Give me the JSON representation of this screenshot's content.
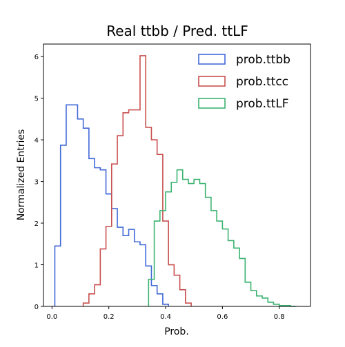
{
  "chart_data": {
    "type": "histogram",
    "title": "Real ttbb / Pred. ttLF",
    "xlabel": "Prob.",
    "ylabel": "Normalized Entries",
    "xlim": [
      -0.03,
      0.91
    ],
    "ylim": [
      0,
      6.3
    ],
    "xticks": [
      0.0,
      0.2,
      0.4,
      0.6,
      0.8
    ],
    "xtick_labels": [
      "0.0",
      "0.2",
      "0.4",
      "0.6",
      "0.8"
    ],
    "yticks": [
      0,
      1,
      2,
      3,
      4,
      5,
      6
    ],
    "ytick_labels": [
      "0",
      "1",
      "2",
      "3",
      "4",
      "5",
      "6"
    ],
    "grid": false,
    "legend_position": "top-right",
    "series": [
      {
        "name": "prob.ttbb",
        "color": "#4169d8",
        "edges": [
          0.01,
          0.03,
          0.05,
          0.07,
          0.09,
          0.11,
          0.13,
          0.15,
          0.17,
          0.19,
          0.21,
          0.23,
          0.25,
          0.27,
          0.29,
          0.31,
          0.33,
          0.35,
          0.37,
          0.39,
          0.41
        ],
        "values": [
          1.45,
          3.87,
          4.84,
          4.84,
          4.5,
          4.28,
          3.55,
          3.33,
          3.28,
          2.7,
          2.35,
          1.9,
          1.7,
          1.85,
          1.55,
          1.48,
          0.97,
          0.5,
          0.3,
          0.05
        ]
      },
      {
        "name": "prob.ttcc",
        "color": "#c8504f",
        "edges": [
          0.11,
          0.13,
          0.15,
          0.17,
          0.19,
          0.21,
          0.23,
          0.25,
          0.27,
          0.29,
          0.31,
          0.33,
          0.35,
          0.37,
          0.39,
          0.41,
          0.43,
          0.45,
          0.47,
          0.49
        ],
        "values": [
          0.08,
          0.3,
          0.52,
          1.38,
          1.92,
          3.42,
          4.1,
          4.65,
          4.72,
          4.72,
          6.02,
          4.3,
          4.0,
          3.65,
          2.05,
          1.0,
          0.75,
          0.4,
          0.08
        ]
      },
      {
        "name": "prob.ttLF",
        "color": "#3cb371",
        "edges": [
          0.34,
          0.36,
          0.38,
          0.4,
          0.42,
          0.44,
          0.46,
          0.48,
          0.5,
          0.52,
          0.54,
          0.56,
          0.58,
          0.6,
          0.62,
          0.64,
          0.66,
          0.68,
          0.7,
          0.72,
          0.74,
          0.76,
          0.78,
          0.8,
          0.82,
          0.84,
          0.86
        ],
        "values": [
          0.65,
          2.05,
          2.3,
          2.75,
          2.98,
          3.28,
          3.05,
          2.95,
          3.05,
          2.95,
          2.62,
          2.3,
          2.05,
          1.86,
          1.58,
          1.4,
          1.15,
          0.58,
          0.38,
          0.25,
          0.2,
          0.1,
          0.05,
          0.02,
          0.02,
          0.0
        ]
      }
    ]
  }
}
